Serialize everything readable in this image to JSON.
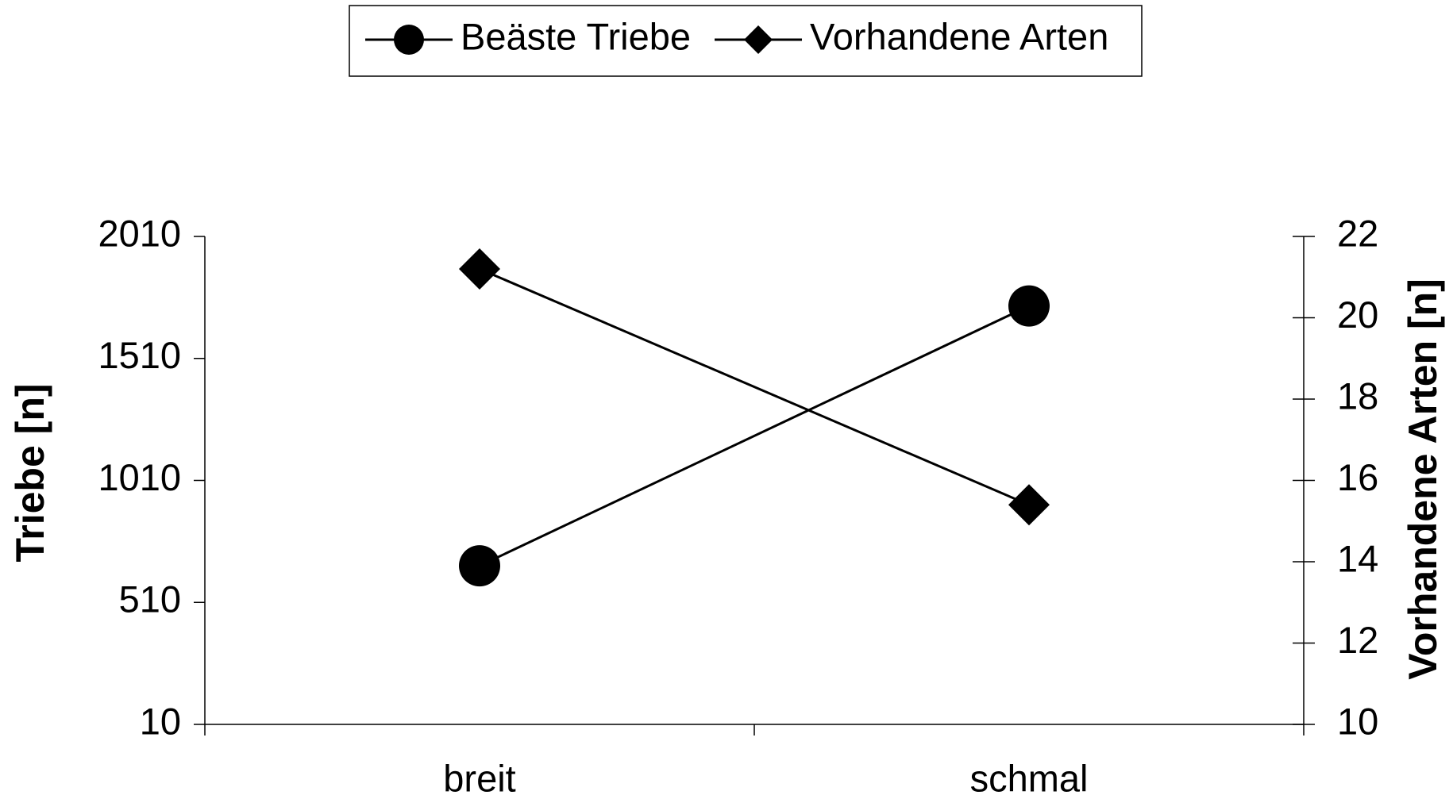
{
  "chart_data": {
    "type": "line",
    "categories": [
      "breit",
      "schmal"
    ],
    "series": [
      {
        "name": "Beäste Triebe",
        "color": "#000000",
        "marker": "circle",
        "values": [
          660,
          1725
        ]
      },
      {
        "name": "Vorhandene Arten",
        "color": "#000000",
        "marker": "diamond",
        "axis": "y2",
        "values": [
          21.2,
          15.4
        ]
      }
    ],
    "ylabel": "Triebe [n]",
    "y2label": "Vorhandene Arten [n]",
    "ylim": [
      10,
      2010
    ],
    "yticks": [
      10,
      510,
      1010,
      1510,
      2010
    ],
    "y2lim": [
      10,
      22
    ],
    "y2ticks": [
      10,
      12,
      14,
      16,
      18,
      20,
      22
    ],
    "legend": "top",
    "grid": false
  }
}
